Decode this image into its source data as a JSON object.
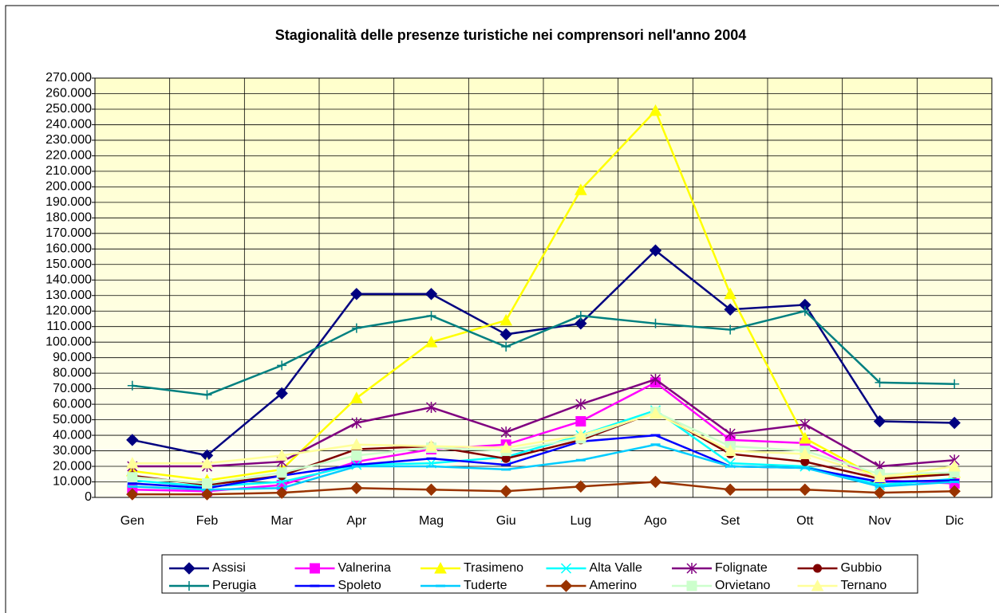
{
  "chart_data": {
    "type": "line",
    "title": "Stagionalità delle presenze turistiche nei comprensori nell'anno 2004",
    "categories": [
      "Gen",
      "Feb",
      "Mar",
      "Apr",
      "Mag",
      "Giu",
      "Lug",
      "Ago",
      "Set",
      "Ott",
      "Nov",
      "Dic"
    ],
    "ylim": [
      0,
      270000
    ],
    "yticks": [
      0,
      {
        "value": 10000,
        "label": "10.000"
      },
      {
        "value": 20000,
        "label": "20.000"
      },
      {
        "value": 30000,
        "label": "30.000"
      },
      {
        "value": 40000,
        "label": "40.000"
      },
      {
        "value": 50000,
        "label": "50.000"
      },
      {
        "value": 60000,
        "label": "60.000"
      },
      {
        "value": 70000,
        "label": "70.000"
      },
      {
        "value": 80000,
        "label": "80.000"
      },
      {
        "value": 90000,
        "label": "90.000"
      },
      {
        "value": 100000,
        "label": "100.000"
      },
      {
        "value": 110000,
        "label": "110.000"
      },
      {
        "value": 120000,
        "label": "120.000"
      },
      {
        "value": 130000,
        "label": "130.000"
      },
      {
        "value": 140000,
        "label": "140.000"
      },
      {
        "value": 150000,
        "label": "150.000"
      },
      {
        "value": 160000,
        "label": "160.000"
      },
      {
        "value": 170000,
        "label": "170.000"
      },
      {
        "value": 180000,
        "label": "180.000"
      },
      {
        "value": 190000,
        "label": "190.000"
      },
      {
        "value": 200000,
        "label": "200.000"
      },
      {
        "value": 210000,
        "label": "210.000"
      },
      {
        "value": 220000,
        "label": "220.000"
      },
      {
        "value": 230000,
        "label": "230.000"
      },
      {
        "value": 240000,
        "label": "240.000"
      },
      {
        "value": 250000,
        "label": "250.000"
      },
      {
        "value": 260000,
        "label": "260.000"
      },
      {
        "value": 270000,
        "label": "270.000"
      }
    ],
    "grid": true,
    "legend": "bottom",
    "series": [
      {
        "name": "Assisi",
        "color": "#000080",
        "marker": "diamond",
        "values": [
          37000,
          27000,
          67000,
          131000,
          131000,
          105000,
          112000,
          159000,
          121000,
          124000,
          49000,
          48000
        ]
      },
      {
        "name": "Valnerina",
        "color": "#FF00FF",
        "marker": "square",
        "values": [
          5000,
          4000,
          8000,
          23000,
          31000,
          34000,
          49000,
          74000,
          37000,
          35000,
          11000,
          9000
        ]
      },
      {
        "name": "Trasimeno",
        "color": "#FFFF00",
        "marker": "triangle",
        "values": [
          17000,
          11000,
          18000,
          64000,
          100000,
          114000,
          198000,
          249000,
          131000,
          38000,
          12000,
          16000
        ]
      },
      {
        "name": "Alta Valle",
        "color": "#00FFFF",
        "marker": "x",
        "values": [
          11000,
          7000,
          10000,
          21000,
          22000,
          26000,
          40000,
          56000,
          22000,
          20000,
          8000,
          12000
        ]
      },
      {
        "name": "Folignate",
        "color": "#800080",
        "marker": "star",
        "values": [
          20000,
          20000,
          23000,
          48000,
          58000,
          42000,
          60000,
          76000,
          41000,
          47000,
          20000,
          24000
        ]
      },
      {
        "name": "Gubbio",
        "color": "#800000",
        "marker": "circle",
        "values": [
          14000,
          8000,
          14000,
          31000,
          33000,
          25000,
          37000,
          55000,
          28000,
          23000,
          12000,
          15000
        ]
      },
      {
        "name": "Perugia",
        "color": "#008080",
        "marker": "plus",
        "values": [
          72000,
          66000,
          85000,
          109000,
          117000,
          97000,
          117000,
          112000,
          108000,
          120000,
          74000,
          73000
        ]
      },
      {
        "name": "Spoleto",
        "color": "#0000FF",
        "marker": "dash",
        "values": [
          9000,
          6000,
          14000,
          21000,
          25000,
          21000,
          36000,
          40000,
          20000,
          19000,
          10000,
          11000
        ]
      },
      {
        "name": "Tuderte",
        "color": "#00CCFF",
        "marker": "dash",
        "values": [
          7000,
          5000,
          6000,
          20000,
          20000,
          18000,
          24000,
          34000,
          20000,
          19000,
          7000,
          10000
        ]
      },
      {
        "name": "Amerino",
        "color": "#993300",
        "marker": "diamond",
        "values": [
          2000,
          2000,
          3000,
          6000,
          5000,
          4000,
          7000,
          10000,
          5000,
          5000,
          3000,
          4000
        ]
      },
      {
        "name": "Orvietano",
        "color": "#CCFFCC",
        "marker": "square",
        "values": [
          13000,
          9000,
          16000,
          27000,
          32000,
          30000,
          38000,
          55000,
          33000,
          30000,
          15000,
          16000
        ]
      },
      {
        "name": "Ternano",
        "color": "#FFFF99",
        "marker": "triangle",
        "values": [
          22000,
          22000,
          27000,
          34000,
          33000,
          32000,
          40000,
          54000,
          30000,
          28000,
          13000,
          20000
        ]
      }
    ]
  }
}
